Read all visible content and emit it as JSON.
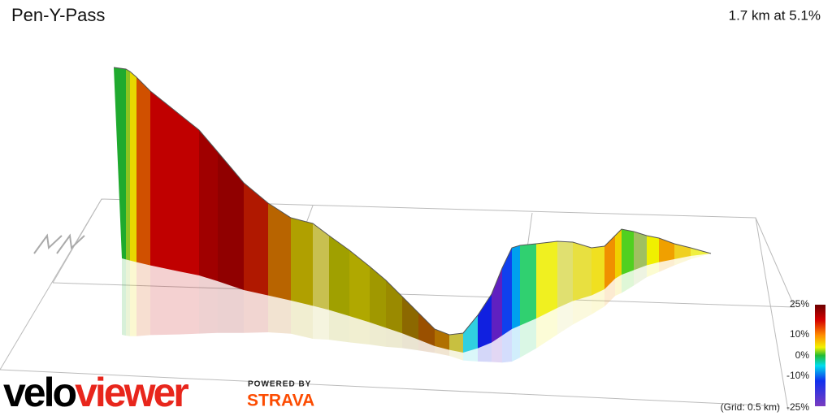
{
  "header": {
    "title": "Pen-Y-Pass",
    "summary": "1.7 km at 5.1%"
  },
  "legend": {
    "labels": [
      "25%",
      "10%",
      "0%",
      "-10%",
      "-25%"
    ]
  },
  "grid_note": "(Grid: 0.5 km)",
  "branding": {
    "logo_part1": "velo",
    "logo_part2": "viewer",
    "powered_by": "POWERED BY",
    "partner": "STRAVA"
  }
}
